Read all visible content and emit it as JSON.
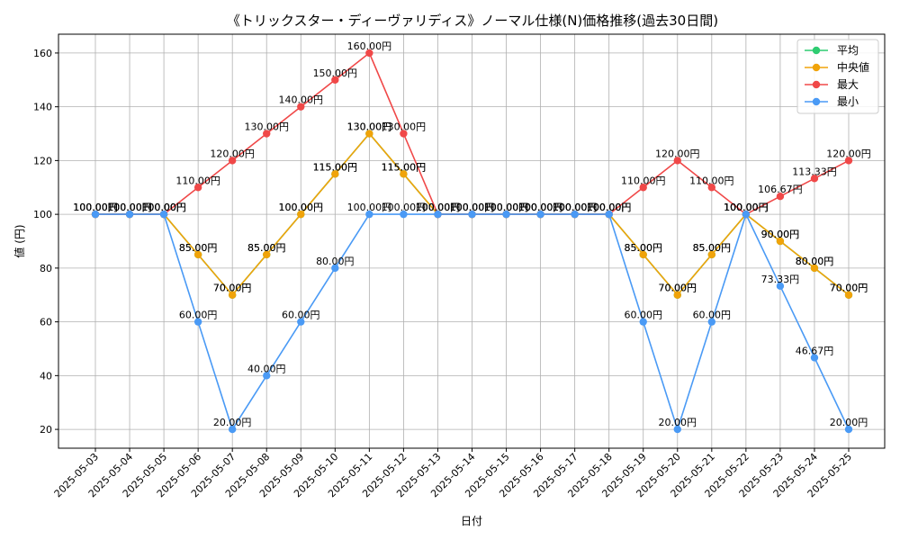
{
  "chart_data": {
    "type": "line",
    "title": "《トリックスター・ディーヴァリディス》ノーマル仕様(N)価格推移(過去30日間)",
    "xlabel": "日付",
    "ylabel": "値 (円)",
    "ylim": [
      13,
      167
    ],
    "yticks": [
      20,
      40,
      60,
      80,
      100,
      120,
      140,
      160
    ],
    "grid": true,
    "legend_position": "top-right",
    "value_suffix": "円",
    "categories": [
      "2025-05-03",
      "2025-05-04",
      "2025-05-05",
      "2025-05-06",
      "2025-05-07",
      "2025-05-08",
      "2025-05-09",
      "2025-05-10",
      "2025-05-11",
      "2025-05-12",
      "2025-05-13",
      "2025-05-14",
      "2025-05-15",
      "2025-05-16",
      "2025-05-17",
      "2025-05-18",
      "2025-05-19",
      "2025-05-20",
      "2025-05-21",
      "2025-05-22",
      "2025-05-23",
      "2025-05-24",
      "2025-05-25"
    ],
    "series": [
      {
        "name": "平均",
        "color": "#2ecc71",
        "values": [
          100,
          100,
          100,
          85,
          70,
          85,
          100,
          115,
          130,
          115,
          100,
          100,
          100,
          100,
          100,
          100,
          85,
          70,
          85,
          100,
          90,
          80,
          70
        ]
      },
      {
        "name": "中央値",
        "color": "#f0a30a",
        "values": [
          100,
          100,
          100,
          85,
          70,
          85,
          100,
          115,
          130,
          115,
          100,
          100,
          100,
          100,
          100,
          100,
          85,
          70,
          85,
          100,
          90,
          80,
          70
        ]
      },
      {
        "name": "最大",
        "color": "#f04848",
        "values": [
          100,
          100,
          100,
          110,
          120,
          130,
          140,
          150,
          160,
          130,
          100,
          100,
          100,
          100,
          100,
          100,
          110,
          120,
          110,
          100,
          106.67,
          113.33,
          120
        ]
      },
      {
        "name": "最小",
        "color": "#4a9af5",
        "values": [
          100,
          100,
          100,
          60,
          20,
          40,
          60,
          80,
          100,
          100,
          100,
          100,
          100,
          100,
          100,
          100,
          60,
          20,
          60,
          100,
          73.33,
          46.67,
          20
        ]
      }
    ]
  }
}
